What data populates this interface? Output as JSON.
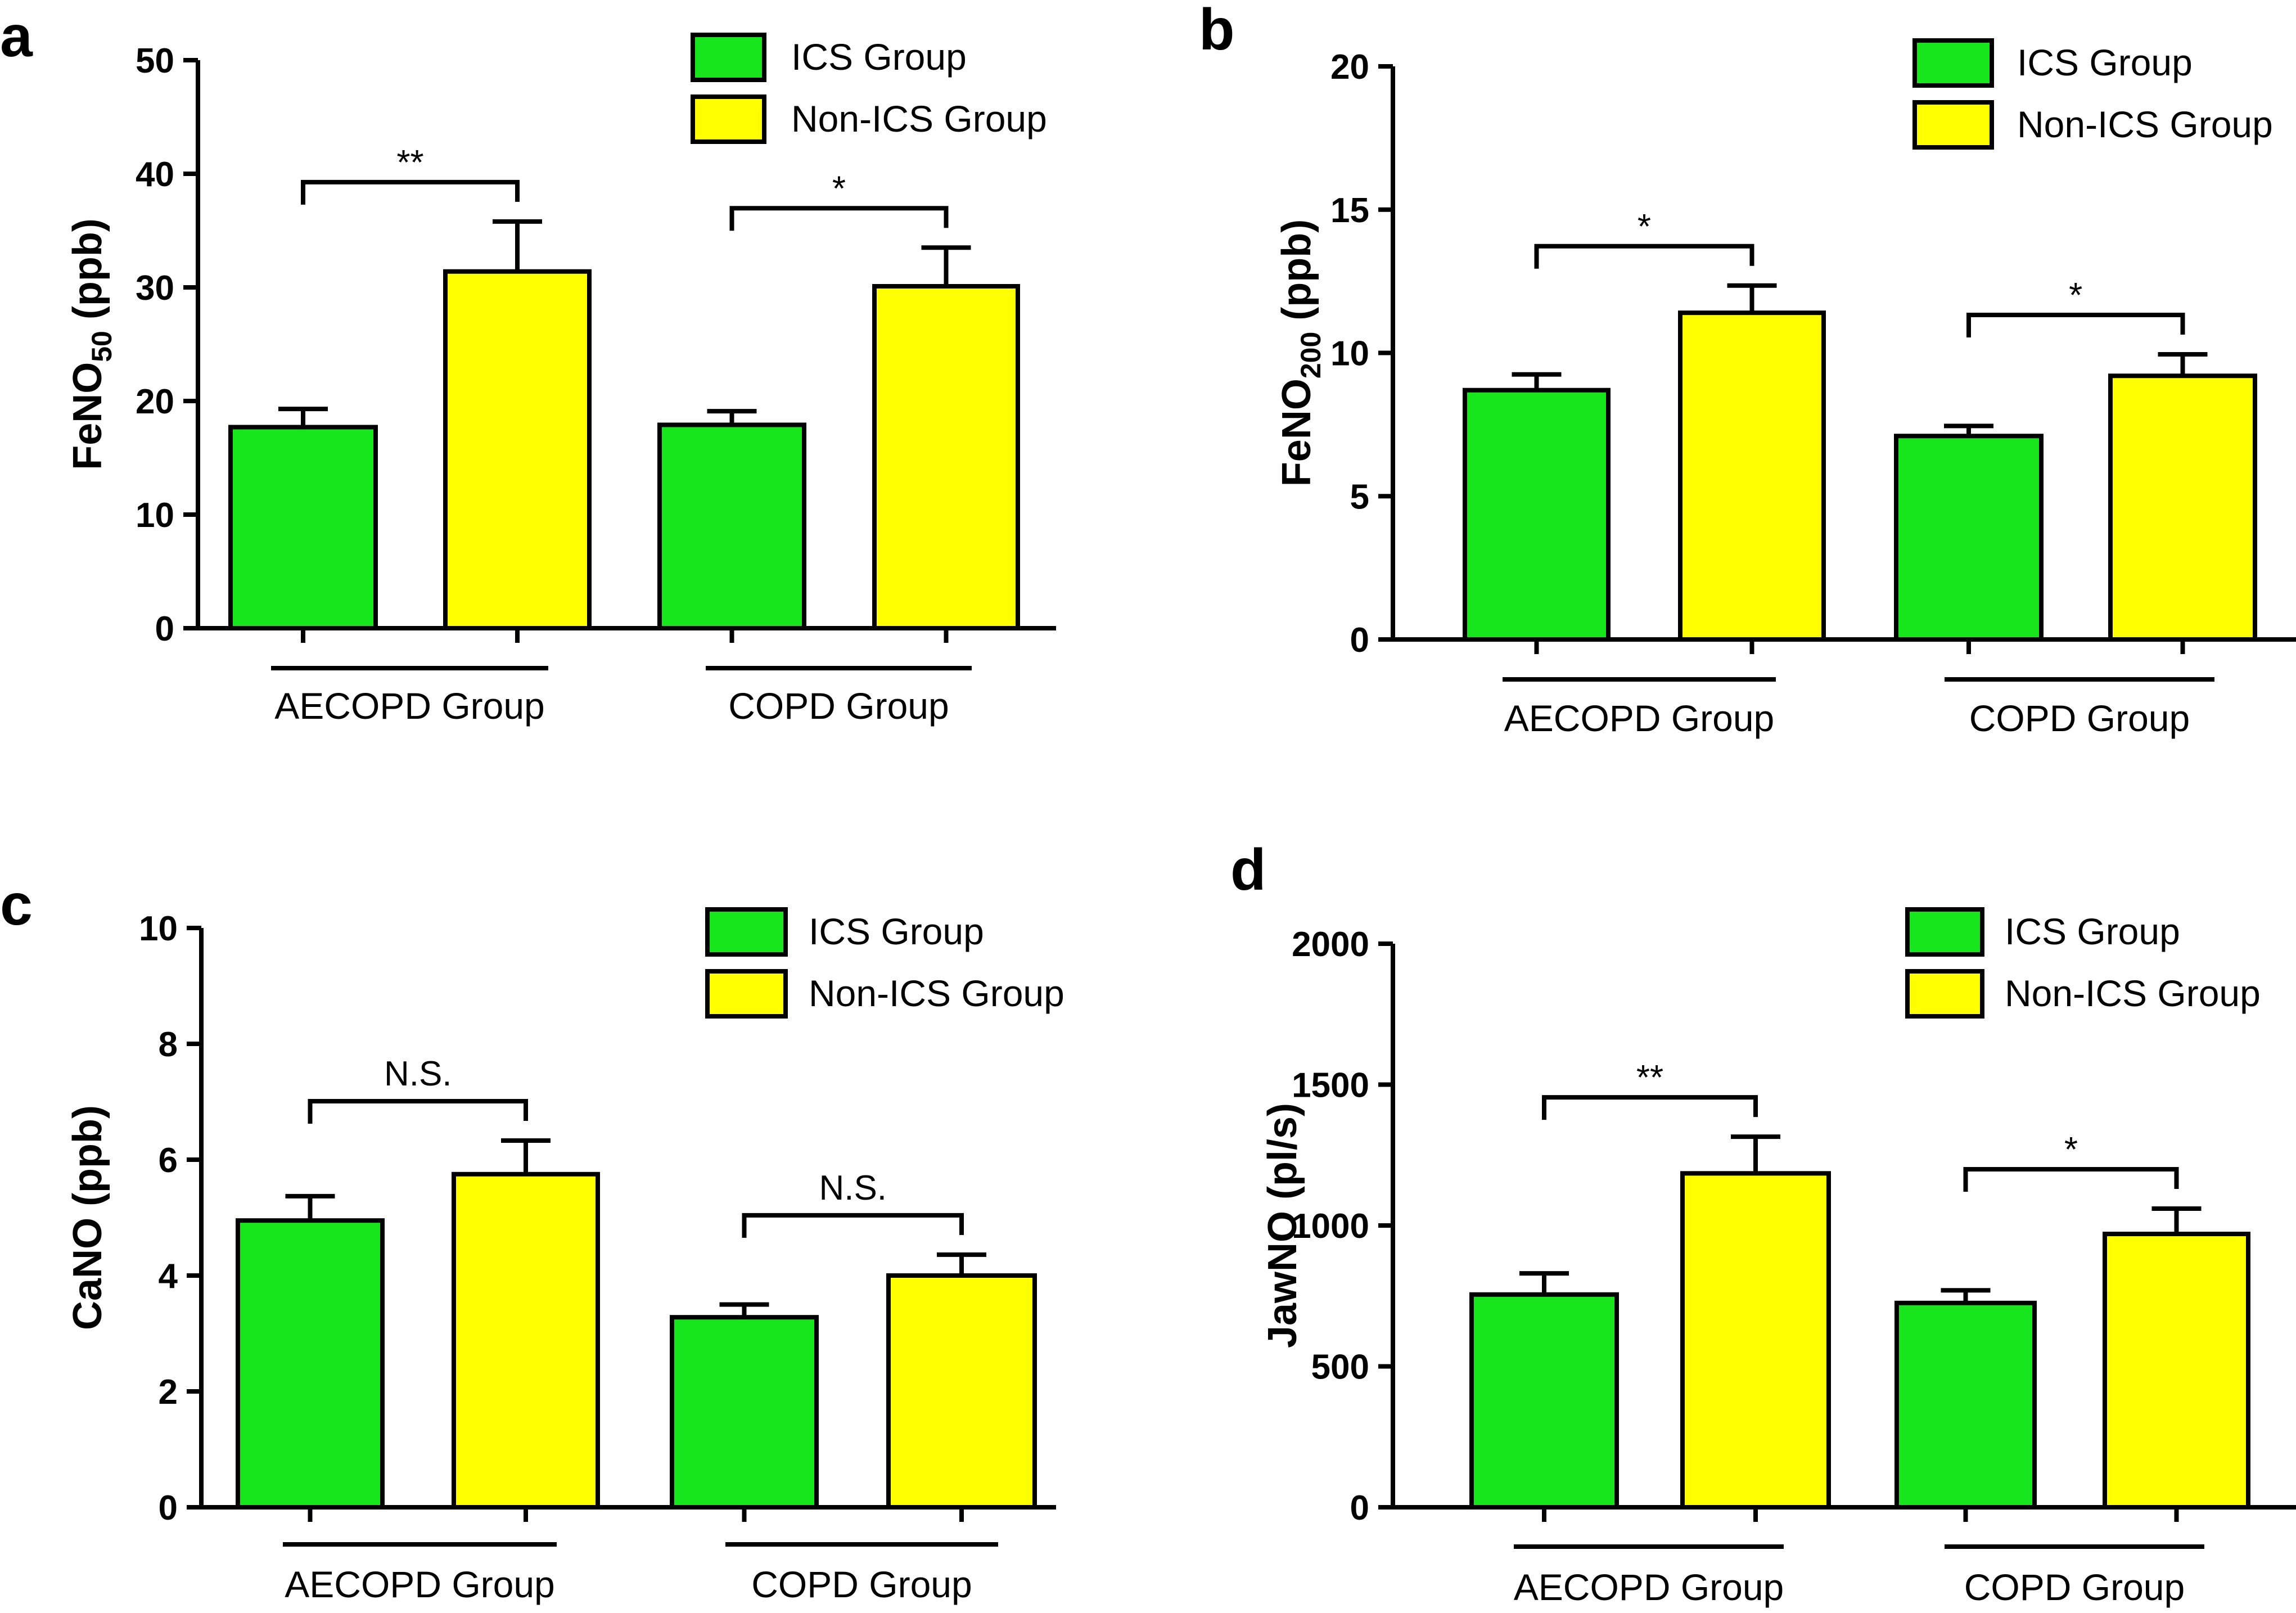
{
  "colors": {
    "ics": "#16e61b",
    "non_ics": "#ffff00",
    "stroke": "#000000"
  },
  "chart_data": [
    {
      "panel": "a",
      "type": "bar",
      "ylabel_main": "FeNO",
      "ylabel_sub": "50",
      "ylabel_unit": " (ppb)",
      "ylim": [
        0,
        50
      ],
      "yticks": [
        "0",
        "10",
        "20",
        "30",
        "40",
        "50"
      ],
      "categories": [
        "AECOPD Group",
        "COPD Group"
      ],
      "series": [
        {
          "name": "ICS Group",
          "values": [
            17.7,
            17.9
          ],
          "errors": [
            1.6,
            1.2
          ]
        },
        {
          "name": "Non-ICS Group",
          "values": [
            31.4,
            30.1
          ],
          "errors": [
            4.4,
            3.4
          ]
        }
      ],
      "significance": [
        "**",
        "*"
      ],
      "legend": [
        "ICS Group",
        "Non-ICS Group"
      ]
    },
    {
      "panel": "b",
      "type": "bar",
      "ylabel_main": "FeNO",
      "ylabel_sub": "200",
      "ylabel_unit": " (ppb)",
      "ylim": [
        0,
        20
      ],
      "yticks": [
        "0",
        "5",
        "10",
        "15",
        "20"
      ],
      "categories": [
        "AECOPD Group",
        "COPD Group"
      ],
      "series": [
        {
          "name": "ICS Group",
          "values": [
            8.7,
            7.1
          ],
          "errors": [
            0.55,
            0.35
          ]
        },
        {
          "name": "Non-ICS Group",
          "values": [
            11.4,
            9.2
          ],
          "errors": [
            0.95,
            0.75
          ]
        }
      ],
      "significance": [
        "*",
        "*"
      ],
      "legend": [
        "ICS Group",
        "Non-ICS Group"
      ]
    },
    {
      "panel": "c",
      "type": "bar",
      "ylabel_main": "CaNO (ppb)",
      "ylabel_sub": "",
      "ylabel_unit": "",
      "ylim": [
        0,
        10
      ],
      "yticks": [
        "0",
        "2",
        "4",
        "6",
        "8",
        "10"
      ],
      "categories": [
        "AECOPD Group",
        "COPD Group"
      ],
      "series": [
        {
          "name": "ICS Group",
          "values": [
            4.95,
            3.28
          ],
          "errors": [
            0.42,
            0.22
          ]
        },
        {
          "name": "Non-ICS Group",
          "values": [
            5.75,
            4.0
          ],
          "errors": [
            0.58,
            0.36
          ]
        }
      ],
      "significance": [
        "N.S.",
        "N.S."
      ],
      "legend": [
        "ICS Group",
        "Non-ICS Group"
      ]
    },
    {
      "panel": "d",
      "type": "bar",
      "ylabel_main": "JawNO (pl/s)",
      "ylabel_sub": "",
      "ylabel_unit": "",
      "ylim": [
        0,
        2000
      ],
      "yticks": [
        "0",
        "500",
        "1000",
        "1500",
        "2000"
      ],
      "categories": [
        "AECOPD Group",
        "COPD Group"
      ],
      "series": [
        {
          "name": "ICS Group",
          "values": [
            755,
            725
          ],
          "errors": [
            75,
            45
          ]
        },
        {
          "name": "Non-ICS Group",
          "values": [
            1185,
            970
          ],
          "errors": [
            130,
            90
          ]
        }
      ],
      "significance": [
        "**",
        "*"
      ],
      "legend": [
        "ICS Group",
        "Non-ICS Group"
      ]
    }
  ]
}
